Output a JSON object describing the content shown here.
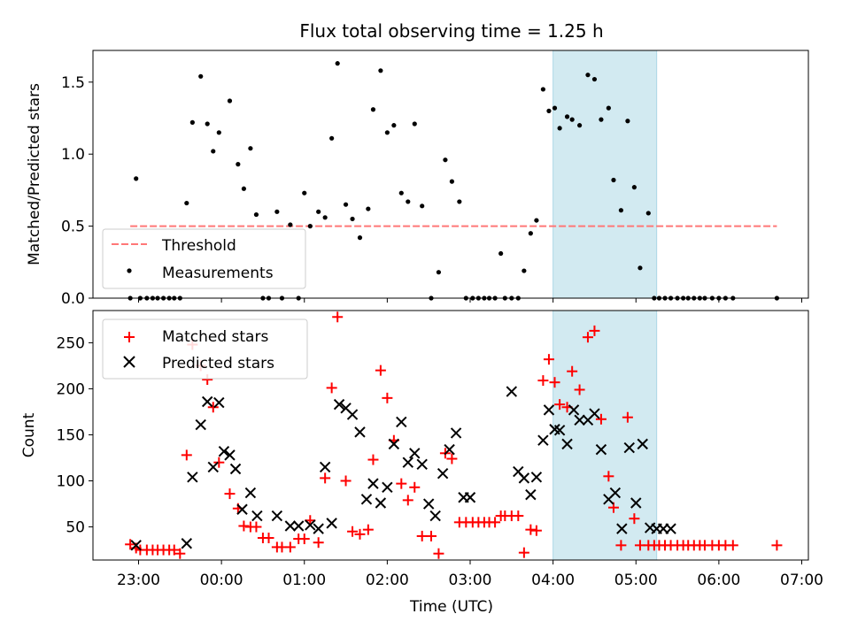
{
  "chart_data": [
    {
      "type": "scatter",
      "title": "Flux total observing time = 1.25 h",
      "ylabel": "Matched/Predicted stars",
      "xlabel": "",
      "ylim": [
        0,
        1.72
      ],
      "yticks": [
        0.0,
        0.5,
        1.0,
        1.5
      ],
      "ytick_labels": [
        "0.0",
        "0.5",
        "1.0",
        "1.5"
      ],
      "shaded_span_hours": [
        4.0,
        5.25
      ],
      "threshold": {
        "value": 0.5,
        "x_range": [
          -1.1,
          6.7
        ],
        "label": "Threshold",
        "color": "#ff7777"
      },
      "series": [
        {
          "name": "Measurements",
          "color": "#000000",
          "x": [
            -1.1,
            -1.03,
            -0.98,
            -0.9,
            -0.83,
            -0.77,
            -0.7,
            -0.63,
            -0.57,
            -0.5,
            -0.42,
            -0.35,
            -0.25,
            -0.17,
            -0.1,
            -0.03,
            0.1,
            0.2,
            0.27,
            0.35,
            0.42,
            0.5,
            0.57,
            0.67,
            0.73,
            0.83,
            0.93,
            1.0,
            1.07,
            1.17,
            1.25,
            1.33,
            1.4,
            1.5,
            1.58,
            1.67,
            1.77,
            1.83,
            1.92,
            2.0,
            2.08,
            2.17,
            2.25,
            2.33,
            2.42,
            2.53,
            2.62,
            2.7,
            2.78,
            2.87,
            2.95,
            3.03,
            3.1,
            3.17,
            3.23,
            3.3,
            3.37,
            3.42,
            3.5,
            3.58,
            3.65,
            3.73,
            3.8,
            3.88,
            3.95,
            4.02,
            4.08,
            4.17,
            4.23,
            4.32,
            4.42,
            4.5,
            4.58,
            4.67,
            4.73,
            4.82,
            4.9,
            4.98,
            5.05,
            5.15,
            5.22,
            5.28,
            5.35,
            5.42,
            5.5,
            5.57,
            5.63,
            5.7,
            5.77,
            5.83,
            5.92,
            6.0,
            6.08,
            6.17,
            6.7
          ],
          "y": [
            0,
            0.83,
            0,
            0,
            0,
            0,
            0,
            0,
            0,
            0,
            0.66,
            1.22,
            1.54,
            1.21,
            1.02,
            1.15,
            1.37,
            0.93,
            0.76,
            1.04,
            0.58,
            0,
            0,
            0.6,
            0,
            0.51,
            0,
            0.73,
            0.5,
            0.6,
            0.56,
            1.11,
            1.63,
            0.65,
            0.55,
            0.42,
            0.62,
            1.31,
            1.58,
            1.15,
            1.2,
            0.73,
            0.67,
            1.21,
            0.64,
            0,
            0.18,
            0.96,
            0.81,
            0.67,
            0,
            0,
            0,
            0,
            0,
            0,
            0.31,
            0,
            0,
            0,
            0.19,
            0.45,
            0.54,
            1.45,
            1.3,
            1.32,
            1.18,
            1.26,
            1.24,
            1.2,
            1.55,
            1.52,
            1.24,
            1.32,
            0.82,
            0.61,
            1.23,
            0.77,
            0.21,
            0.59,
            0,
            0,
            0,
            0,
            0,
            0,
            0,
            0,
            0,
            0,
            0,
            0,
            0,
            0,
            0
          ]
        }
      ],
      "legend": {
        "position": "lower-left",
        "entries": [
          "Threshold",
          "Measurements"
        ]
      }
    },
    {
      "type": "scatter",
      "title": "",
      "xlabel": "Time (UTC)",
      "ylabel": "Count",
      "ylim": [
        14,
        285
      ],
      "yticks": [
        50,
        100,
        150,
        200,
        250
      ],
      "ytick_labels": [
        "50",
        "100",
        "150",
        "200",
        "250"
      ],
      "xlim": [
        -1.55,
        7.08
      ],
      "xticks": [
        -1,
        0,
        1,
        2,
        3,
        4,
        5,
        6,
        7
      ],
      "xtick_labels": [
        "23:00",
        "00:00",
        "01:00",
        "02:00",
        "03:00",
        "04:00",
        "05:00",
        "06:00",
        "07:00"
      ],
      "shaded_span_hours": [
        4.0,
        5.25
      ],
      "series": [
        {
          "name": "Matched stars",
          "marker": "plus",
          "color": "#ff0000",
          "x": [
            -1.1,
            -1.03,
            -0.98,
            -0.9,
            -0.83,
            -0.77,
            -0.7,
            -0.63,
            -0.57,
            -0.5,
            -0.42,
            -0.35,
            -0.25,
            -0.17,
            -0.1,
            -0.03,
            0.1,
            0.2,
            0.27,
            0.35,
            0.42,
            0.5,
            0.57,
            0.67,
            0.73,
            0.83,
            0.93,
            1.0,
            1.07,
            1.17,
            1.25,
            1.33,
            1.4,
            1.5,
            1.58,
            1.67,
            1.77,
            1.83,
            1.92,
            2.0,
            2.08,
            2.17,
            2.25,
            2.33,
            2.42,
            2.53,
            2.62,
            2.7,
            2.78,
            2.87,
            2.95,
            3.03,
            3.1,
            3.17,
            3.23,
            3.3,
            3.37,
            3.42,
            3.5,
            3.58,
            3.65,
            3.73,
            3.8,
            3.88,
            3.95,
            4.02,
            4.08,
            4.17,
            4.23,
            4.32,
            4.42,
            4.5,
            4.58,
            4.67,
            4.73,
            4.82,
            4.9,
            4.98,
            5.05,
            5.15,
            5.22,
            5.28,
            5.35,
            5.42,
            5.5,
            5.57,
            5.63,
            5.7,
            5.77,
            5.83,
            5.92,
            6.0,
            6.08,
            6.17,
            6.7
          ],
          "y": [
            31,
            27,
            25,
            25,
            25,
            25,
            25,
            25,
            25,
            21,
            128,
            248,
            225,
            210,
            180,
            120,
            86,
            70,
            51,
            50,
            50,
            38,
            38,
            28,
            28,
            28,
            37,
            37,
            57,
            33,
            103,
            201,
            278,
            100,
            45,
            42,
            47,
            123,
            220,
            190,
            144,
            97,
            79,
            93,
            40,
            40,
            21,
            130,
            124,
            55,
            55,
            55,
            55,
            55,
            55,
            55,
            62,
            62,
            62,
            62,
            22,
            47,
            46,
            209,
            232,
            207,
            183,
            180,
            219,
            199,
            256,
            263,
            167,
            105,
            71,
            30,
            169,
            59,
            30,
            30,
            30,
            30,
            30,
            30,
            30,
            30,
            30,
            30,
            30,
            30,
            30,
            30,
            30,
            30,
            30
          ]
        },
        {
          "name": "Predicted stars",
          "marker": "x",
          "color": "#000000",
          "x": [
            -1.03,
            -0.42,
            -0.35,
            -0.25,
            -0.17,
            -0.1,
            -0.03,
            0.03,
            0.1,
            0.17,
            0.25,
            0.35,
            0.43,
            0.67,
            0.83,
            0.93,
            1.07,
            1.17,
            1.25,
            1.33,
            1.42,
            1.5,
            1.58,
            1.67,
            1.75,
            1.83,
            1.92,
            2.0,
            2.08,
            2.17,
            2.25,
            2.33,
            2.42,
            2.5,
            2.58,
            2.67,
            2.75,
            2.83,
            2.92,
            3.0,
            3.5,
            3.58,
            3.65,
            3.73,
            3.8,
            3.88,
            3.95,
            4.02,
            4.08,
            4.17,
            4.25,
            4.32,
            4.42,
            4.5,
            4.58,
            4.67,
            4.75,
            4.83,
            4.92,
            5.0,
            5.08,
            5.17,
            5.25,
            5.33,
            5.42
          ],
          "y": [
            30,
            32,
            104,
            161,
            186,
            115,
            185,
            132,
            128,
            113,
            69,
            87,
            62,
            62,
            51,
            51,
            52,
            48,
            115,
            54,
            183,
            179,
            172,
            153,
            80,
            97,
            76,
            93,
            140,
            164,
            120,
            130,
            118,
            75,
            62,
            108,
            134,
            152,
            82,
            82,
            197,
            110,
            103,
            85,
            104,
            144,
            177,
            156,
            155,
            140,
            177,
            166,
            166,
            173,
            134,
            80,
            87,
            48,
            136,
            76,
            140,
            49,
            48,
            48,
            48
          ]
        }
      ],
      "legend": {
        "position": "upper-left",
        "entries": [
          "Matched stars",
          "Predicted stars"
        ]
      }
    }
  ],
  "shade_color": "#add8e6"
}
